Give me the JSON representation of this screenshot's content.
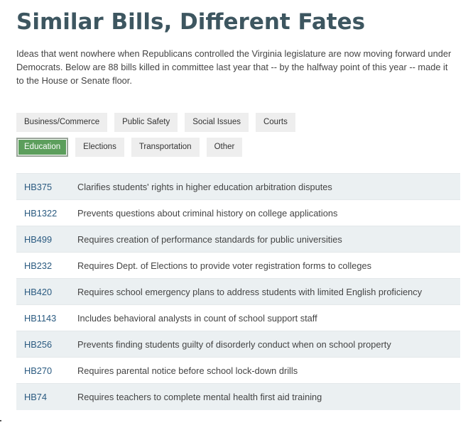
{
  "header": {
    "title": "Similar Bills, Different Fates",
    "intro": "Ideas that went nowhere when Republicans controlled the Virginia legislature are now moving forward under Democrats. Below are 88 bills killed in committee last year that -- by the halfway point of this year -- made it to the House or Senate floor."
  },
  "filters": {
    "row1": [
      {
        "label": "Business/Commerce",
        "name": "filter-business-commerce"
      },
      {
        "label": "Public Safety",
        "name": "filter-public-safety"
      },
      {
        "label": "Social Issues",
        "name": "filter-social-issues"
      },
      {
        "label": "Courts",
        "name": "filter-courts"
      }
    ],
    "row2": [
      {
        "label": "Education",
        "name": "filter-education",
        "active": true
      },
      {
        "label": "Elections",
        "name": "filter-elections"
      },
      {
        "label": "Transportation",
        "name": "filter-transportation"
      },
      {
        "label": "Other",
        "name": "filter-other"
      }
    ],
    "active_color": "#5c9e5c"
  },
  "bills": [
    {
      "id": "HB375",
      "description": "Clarifies students' rights in higher education arbitration disputes"
    },
    {
      "id": "HB1322",
      "description": "Prevents questions about criminal history on college applications"
    },
    {
      "id": "HB499",
      "description": "Requires creation of performance standards for public universities"
    },
    {
      "id": "HB232",
      "description": "Requires Dept. of Elections to provide voter registration forms to colleges"
    },
    {
      "id": "HB420",
      "description": "Requires school emergency plans to address students with limited English proficiency"
    },
    {
      "id": "HB1143",
      "description": "Includes behavioral analysts in count of school support staff"
    },
    {
      "id": "HB256",
      "description": "Prevents finding students guilty of disorderly conduct when on school property"
    },
    {
      "id": "HB270",
      "description": "Requires parental notice before school lock-down drills"
    },
    {
      "id": "HB74",
      "description": "Requires teachers to complete mental health first aid training"
    }
  ]
}
